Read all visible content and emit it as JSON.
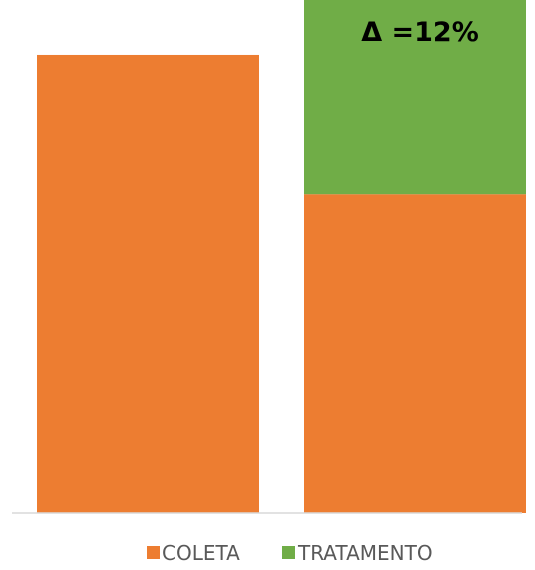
{
  "chart_data": {
    "type": "bar",
    "stacked": true,
    "categories": [
      "",
      ""
    ],
    "series": [
      {
        "name": "COLETA",
        "values": [
          100,
          69.6
        ],
        "color": "#ED7D31"
      },
      {
        "name": "TRATAMENTO",
        "values": [
          0,
          42.4
        ],
        "color": "#70AD47"
      }
    ],
    "annotation": "Δ =12%",
    "xlabel": "",
    "ylabel": "",
    "ylim": [
      0,
      112
    ],
    "grid": false,
    "legend_placement": "bottom"
  }
}
